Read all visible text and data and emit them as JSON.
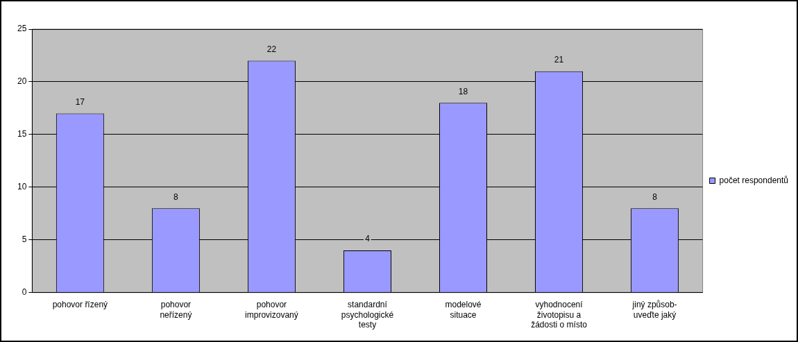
{
  "chart_data": {
    "type": "bar",
    "categories": [
      "pohovor řízený",
      "pohovor neřízený",
      "pohovor improvizovaný",
      "standardní psychologické testy",
      "modelové situace",
      "vyhodnocení životopisu a žádosti o místo",
      "jiný způsob-uveďte jaký"
    ],
    "series": [
      {
        "name": "počet respondentů",
        "color": "#9999ff",
        "values": [
          17,
          8,
          22,
          4,
          18,
          21,
          8
        ]
      }
    ],
    "ylim": [
      0,
      25
    ],
    "yticks": [
      0,
      5,
      10,
      15,
      20,
      25
    ],
    "grid": "y",
    "legend": "right",
    "data_labels": true
  }
}
